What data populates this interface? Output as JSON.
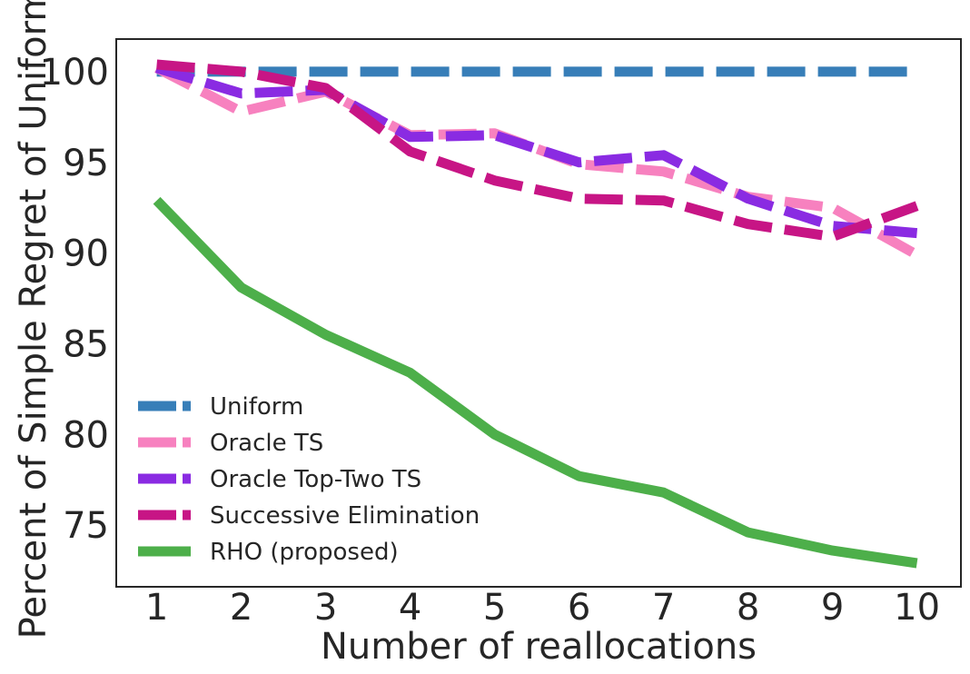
{
  "chart_data": {
    "type": "line",
    "title": "",
    "xlabel": "Number of reallocations",
    "ylabel": "Percent of Simple Regret of Uniform",
    "x": [
      1,
      2,
      3,
      4,
      5,
      6,
      7,
      8,
      9,
      10
    ],
    "xticks": [
      "1",
      "2",
      "3",
      "4",
      "5",
      "6",
      "7",
      "8",
      "9",
      "10"
    ],
    "yticks": [
      "75",
      "80",
      "85",
      "90",
      "95",
      "100"
    ],
    "xlim": [
      0.52,
      10.52
    ],
    "ylim": [
      71.6,
      101.8
    ],
    "grid": false,
    "legend_position": "lower-left",
    "series": [
      {
        "name": "Uniform",
        "color": "#377eb8",
        "style": "dashed",
        "values": [
          100,
          100,
          100,
          100,
          100,
          100,
          100,
          100,
          100,
          100
        ]
      },
      {
        "name": "Oracle TS",
        "color": "#f781bf",
        "style": "dashed",
        "values": [
          100.2,
          97.8,
          98.9,
          96.5,
          96.6,
          94.9,
          94.5,
          93.1,
          92.5,
          89.9
        ]
      },
      {
        "name": "Oracle Top-Two TS",
        "color": "#8a2be2",
        "style": "dashed",
        "values": [
          100.2,
          98.8,
          99.0,
          96.4,
          96.5,
          95.0,
          95.4,
          93.0,
          91.5,
          91.1
        ]
      },
      {
        "name": "Successive Elimination",
        "color": "#c71585",
        "style": "dashed",
        "values": [
          100.4,
          100.0,
          99.1,
          95.6,
          94.0,
          93.0,
          92.9,
          91.6,
          90.9,
          92.6
        ]
      },
      {
        "name": "RHO (proposed)",
        "color": "#4daf4a",
        "style": "solid",
        "values": [
          92.9,
          88.1,
          85.5,
          83.4,
          80.0,
          77.7,
          76.8,
          74.6,
          73.6,
          72.9
        ]
      }
    ]
  }
}
